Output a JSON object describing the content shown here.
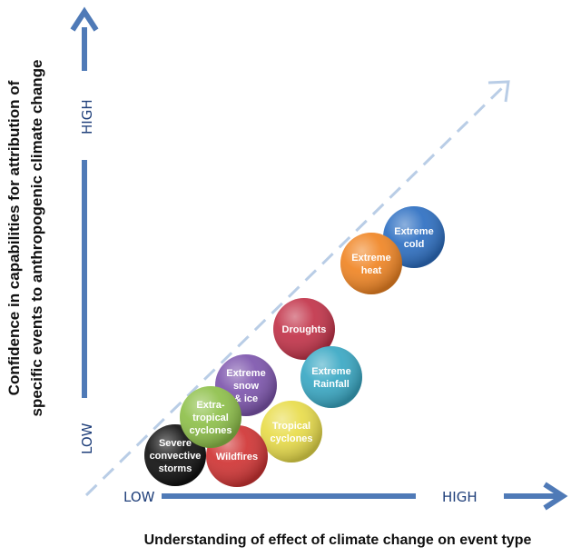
{
  "y_axis": {
    "title_line1": "Confidence in capabilities for attribution of",
    "title_line2": "specific events to anthropogenic climate change",
    "low_label": "LOW",
    "high_label": "HIGH"
  },
  "x_axis": {
    "title": "Understanding of effect of climate change on event type",
    "low_label": "LOW",
    "high_label": "HIGH"
  },
  "colors": {
    "axis_arrow": "#4f7ab7",
    "diagonal": "#b9cde6"
  },
  "events": [
    {
      "id": "severe-convective-storms",
      "lines": [
        "Severe",
        "convective",
        "storms"
      ],
      "color": "#111111"
    },
    {
      "id": "wildfires",
      "lines": [
        "Wildfires"
      ],
      "color": "#d03434"
    },
    {
      "id": "extra-tropical-cyclones",
      "lines": [
        "Extra-",
        "tropical",
        "cyclones"
      ],
      "color": "#8ec04a"
    },
    {
      "id": "extreme-snow-ice",
      "lines": [
        "Extreme",
        "snow",
        "& ice"
      ],
      "color": "#7d55ad"
    },
    {
      "id": "tropical-cyclones",
      "lines": [
        "Tropical",
        "cyclones"
      ],
      "color": "#e8dc4a"
    },
    {
      "id": "droughts",
      "lines": [
        "Droughts"
      ],
      "color": "#c23349"
    },
    {
      "id": "extreme-rainfall",
      "lines": [
        "Extreme",
        "Rainfall"
      ],
      "color": "#39a8c4"
    },
    {
      "id": "extreme-heat",
      "lines": [
        "Extreme",
        "heat"
      ],
      "color": "#f08524"
    },
    {
      "id": "extreme-cold",
      "lines": [
        "Extreme",
        "cold"
      ],
      "color": "#2d6fc2"
    }
  ]
}
